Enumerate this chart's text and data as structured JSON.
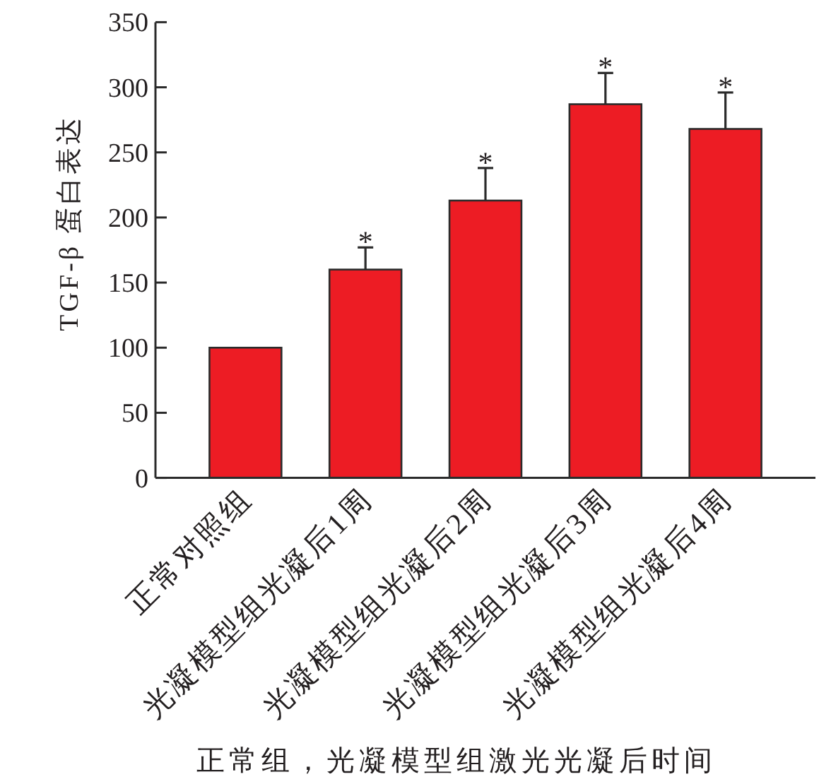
{
  "chart_data": {
    "type": "bar",
    "ylabel": "TGF-β 蛋白表达",
    "xlabel": "正常组，光凝模型组激光光凝后时间",
    "categories": [
      "正常对照组",
      "光凝模型组光凝后1周",
      "光凝模型组光凝后2周",
      "光凝模型组光凝后3周",
      "光凝模型组光凝后4周"
    ],
    "values": [
      100,
      160,
      213,
      287,
      268
    ],
    "errors": [
      null,
      [
        160,
        177
      ],
      [
        213,
        238
      ],
      [
        287,
        311
      ],
      [
        268,
        296
      ]
    ],
    "color": "#ed1c24",
    "ylim": [
      0,
      350
    ],
    "yticks": [
      0,
      50,
      100,
      150,
      200,
      250,
      300,
      350
    ],
    "annotations": [
      {
        "text": "*",
        "x": "光凝模型组光凝后1周",
        "y": 177
      },
      {
        "text": "*",
        "x": "光凝模型组光凝后2周",
        "y": 238
      },
      {
        "text": "*",
        "x": "光凝模型组光凝后3周",
        "y": 311
      },
      {
        "text": "*",
        "x": "光凝模型组光凝后4周",
        "y": 296
      }
    ]
  }
}
